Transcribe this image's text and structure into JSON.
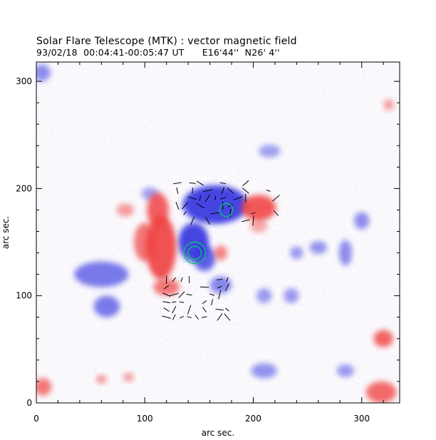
{
  "header": {
    "title": "Solar Flare Telescope (MTK) : vector magnetic field",
    "time": "93/02/18  00:04:41-00:05:47 UT",
    "coords": "E16'44''  N26' 4''"
  },
  "colors": {
    "positive_polarity": "#f04040",
    "negative_polarity": "#3030e0",
    "noise_red": "#f0a0a0",
    "noise_blue": "#a0a0f0",
    "circle": "#00cc66",
    "vectors": "#000000"
  },
  "chart_data": {
    "type": "heatmap",
    "xlabel": "arc sec.",
    "ylabel": "arc sec.",
    "xlim": [
      0,
      335
    ],
    "ylim": [
      0,
      318
    ],
    "x_ticks": [
      "0",
      "100",
      "200",
      "300"
    ],
    "x_tick_values": [
      0,
      100,
      200,
      300
    ],
    "y_ticks": [
      "0",
      "100",
      "200",
      "300"
    ],
    "y_tick_values": [
      0,
      100,
      200,
      300
    ],
    "regions": [
      {
        "polarity": "negative",
        "x": 165,
        "y": 185,
        "rx": 30,
        "ry": 18,
        "strength": 1.0
      },
      {
        "polarity": "negative",
        "x": 145,
        "y": 150,
        "rx": 14,
        "ry": 18,
        "strength": 1.0
      },
      {
        "polarity": "negative",
        "x": 155,
        "y": 135,
        "rx": 10,
        "ry": 12,
        "strength": 0.8
      },
      {
        "polarity": "negative",
        "x": 60,
        "y": 120,
        "rx": 25,
        "ry": 12,
        "strength": 0.6
      },
      {
        "polarity": "negative",
        "x": 65,
        "y": 90,
        "rx": 12,
        "ry": 10,
        "strength": 0.6
      },
      {
        "polarity": "negative",
        "x": 170,
        "y": 110,
        "rx": 10,
        "ry": 8,
        "strength": 0.5
      },
      {
        "polarity": "negative",
        "x": 285,
        "y": 140,
        "rx": 6,
        "ry": 12,
        "strength": 0.45
      },
      {
        "polarity": "negative",
        "x": 300,
        "y": 170,
        "rx": 7,
        "ry": 8,
        "strength": 0.45
      },
      {
        "polarity": "negative",
        "x": 260,
        "y": 145,
        "rx": 8,
        "ry": 6,
        "strength": 0.4
      },
      {
        "polarity": "negative",
        "x": 240,
        "y": 140,
        "rx": 6,
        "ry": 6,
        "strength": 0.35
      },
      {
        "polarity": "negative",
        "x": 210,
        "y": 100,
        "rx": 7,
        "ry": 7,
        "strength": 0.35
      },
      {
        "polarity": "negative",
        "x": 235,
        "y": 100,
        "rx": 7,
        "ry": 7,
        "strength": 0.35
      },
      {
        "polarity": "negative",
        "x": 210,
        "y": 30,
        "rx": 12,
        "ry": 7,
        "strength": 0.4
      },
      {
        "polarity": "negative",
        "x": 285,
        "y": 30,
        "rx": 8,
        "ry": 6,
        "strength": 0.35
      },
      {
        "polarity": "negative",
        "x": 5,
        "y": 308,
        "rx": 8,
        "ry": 8,
        "strength": 0.45
      },
      {
        "polarity": "negative",
        "x": 105,
        "y": 195,
        "rx": 8,
        "ry": 6,
        "strength": 0.3
      },
      {
        "polarity": "negative",
        "x": 215,
        "y": 235,
        "rx": 10,
        "ry": 6,
        "strength": 0.3
      },
      {
        "polarity": "positive",
        "x": 115,
        "y": 145,
        "rx": 14,
        "ry": 30,
        "strength": 1.0
      },
      {
        "polarity": "positive",
        "x": 112,
        "y": 180,
        "rx": 10,
        "ry": 16,
        "strength": 0.9
      },
      {
        "polarity": "positive",
        "x": 100,
        "y": 150,
        "rx": 10,
        "ry": 18,
        "strength": 0.7
      },
      {
        "polarity": "positive",
        "x": 120,
        "y": 108,
        "rx": 12,
        "ry": 8,
        "strength": 0.7
      },
      {
        "polarity": "positive",
        "x": 205,
        "y": 182,
        "rx": 16,
        "ry": 12,
        "strength": 0.95
      },
      {
        "polarity": "positive",
        "x": 170,
        "y": 140,
        "rx": 6,
        "ry": 7,
        "strength": 0.6
      },
      {
        "polarity": "positive",
        "x": 320,
        "y": 60,
        "rx": 9,
        "ry": 8,
        "strength": 0.85
      },
      {
        "polarity": "positive",
        "x": 318,
        "y": 10,
        "rx": 14,
        "ry": 10,
        "strength": 0.8
      },
      {
        "polarity": "positive",
        "x": 6,
        "y": 15,
        "rx": 8,
        "ry": 8,
        "strength": 0.7
      },
      {
        "polarity": "positive",
        "x": 60,
        "y": 22,
        "rx": 5,
        "ry": 4,
        "strength": 0.45
      },
      {
        "polarity": "positive",
        "x": 85,
        "y": 24,
        "rx": 5,
        "ry": 4,
        "strength": 0.4
      },
      {
        "polarity": "positive",
        "x": 82,
        "y": 180,
        "rx": 8,
        "ry": 6,
        "strength": 0.4
      },
      {
        "polarity": "positive",
        "x": 325,
        "y": 278,
        "rx": 5,
        "ry": 5,
        "strength": 0.4
      },
      {
        "polarity": "positive",
        "x": 205,
        "y": 165,
        "rx": 8,
        "ry": 6,
        "strength": 0.3
      }
    ],
    "circles": [
      {
        "x": 175,
        "y": 180,
        "r": 6
      },
      {
        "x": 146,
        "y": 140,
        "r": 10
      },
      {
        "x": 146,
        "y": 140,
        "r": 6
      }
    ],
    "vectors_region": [
      {
        "x": 130,
        "y": 210,
        "w": 95,
        "h": 40
      },
      {
        "x": 120,
        "y": 120,
        "w": 60,
        "h": 40
      }
    ]
  }
}
